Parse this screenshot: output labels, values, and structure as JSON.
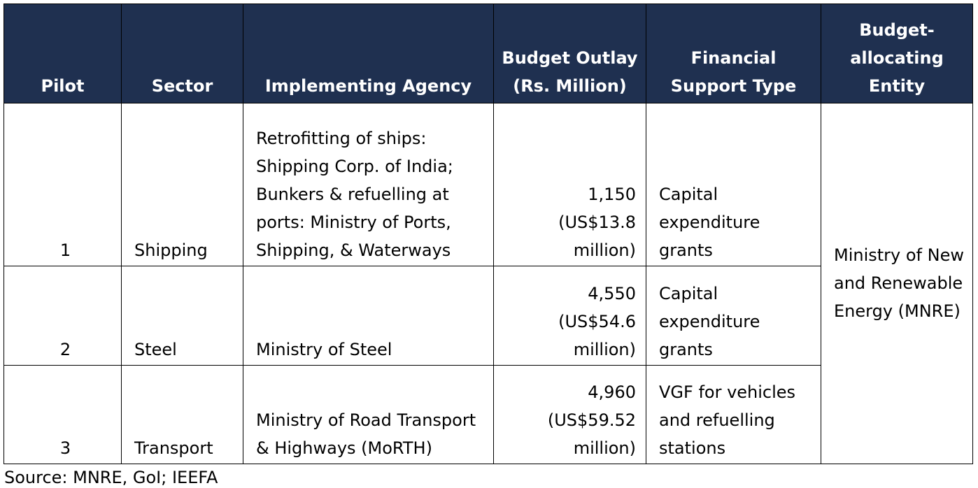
{
  "table": {
    "header": [
      "Pilot",
      "Sector",
      "Implementing Agency",
      "Budget Outlay (Rs. Million)",
      "Financial Support Type",
      "Budget-allocating Entity"
    ],
    "rows": [
      [
        "1",
        "Shipping",
        "Retrofitting of ships: Shipping Corp. of India; Bunkers & refuelling at ports: Ministry of Ports, Shipping, & Waterways",
        "1,150 (US$13.8 million)",
        "Capital expenditure grants",
        "Ministry of New and Renewable Energy (MNRE)"
      ],
      [
        "2",
        "Steel",
        "Ministry of Steel",
        "4,550 (US$54.6 million)",
        "Capital expenditure grants"
      ],
      [
        "3",
        "Transport",
        "Ministry of Road Transport & Highways (MoRTH)",
        "4,960 (US$59.52 million)",
        "VGF for vehicles and refuelling stations"
      ]
    ]
  },
  "source": "Source: MNRE, GoI; IEEFA"
}
